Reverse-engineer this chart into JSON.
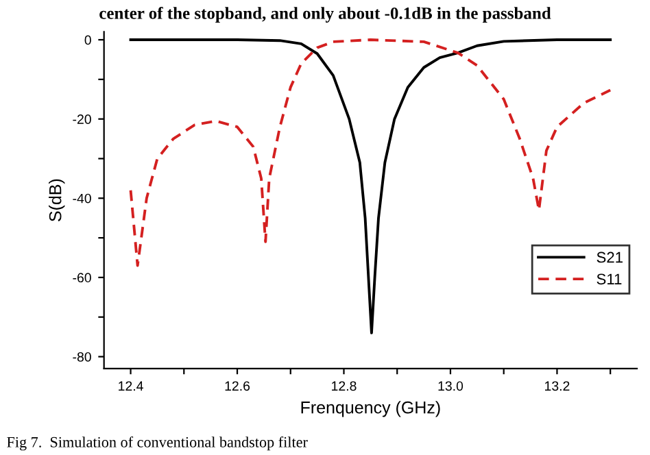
{
  "chart_data": {
    "type": "line",
    "xlabel": "Frenquency (GHz)",
    "ylabel": "S(dB)",
    "xlim": [
      12.35,
      13.35
    ],
    "ylim": [
      -83,
      2
    ],
    "xticks": [
      12.4,
      {
        "value": 12.5,
        "label": null
      },
      12.6,
      {
        "value": 12.7,
        "label": null
      },
      12.8,
      {
        "value": 12.9,
        "label": null
      },
      {
        "value": 13.0,
        "label": "13.0"
      },
      {
        "value": 13.1,
        "label": null
      },
      13.2,
      {
        "value": 13.3,
        "label": null
      }
    ],
    "yticks": [
      0,
      {
        "value": -10,
        "label": null
      },
      -20,
      {
        "value": -30,
        "label": null
      },
      -40,
      {
        "value": -50,
        "label": null
      },
      -60,
      {
        "value": -70,
        "label": null
      },
      -80
    ],
    "grid": false,
    "legend": "bottom right",
    "marker": "none",
    "annotations": [
      "center of the stopband, and only about -0.1dB in the passband",
      "Fig 7.  Simulation of conventional bandstop filter"
    ],
    "series": [
      {
        "name": "S21",
        "color": "#000000",
        "line_style": "solid",
        "x": [
          12.4,
          12.5,
          12.6,
          12.68,
          12.72,
          12.75,
          12.78,
          12.81,
          12.83,
          12.84,
          12.847,
          12.852,
          12.858,
          12.865,
          12.877,
          12.895,
          12.92,
          12.95,
          12.98,
          13.014,
          13.05,
          13.1,
          13.2,
          13.3
        ],
        "values": [
          0,
          0,
          0,
          -0.2,
          -1,
          -3.5,
          -9,
          -20,
          -31,
          -45,
          -62,
          -74,
          -60,
          -45,
          -31,
          -20,
          -12,
          -7,
          -4.5,
          -3.3,
          -1.5,
          -0.4,
          0,
          0
        ]
      },
      {
        "name": "S11",
        "color": "#d42020",
        "line_style": "dashed",
        "x": [
          12.4,
          12.413,
          12.43,
          12.45,
          12.48,
          12.52,
          12.56,
          12.6,
          12.63,
          12.645,
          12.653,
          12.66,
          12.68,
          12.7,
          12.72,
          12.75,
          12.78,
          12.85,
          12.95,
          13.014,
          13.05,
          13.1,
          13.13,
          13.155,
          13.166,
          13.18,
          13.2,
          13.25,
          13.3
        ],
        "values": [
          -38,
          -57,
          -40,
          -30,
          -25,
          -21.5,
          -20.5,
          -22,
          -27,
          -35,
          -51,
          -35,
          -22,
          -12,
          -6,
          -2,
          -0.5,
          0,
          -0.5,
          -3.3,
          -6.5,
          -15,
          -25,
          -35,
          -43,
          -28,
          -22,
          -16,
          -12.7
        ]
      }
    ]
  }
}
